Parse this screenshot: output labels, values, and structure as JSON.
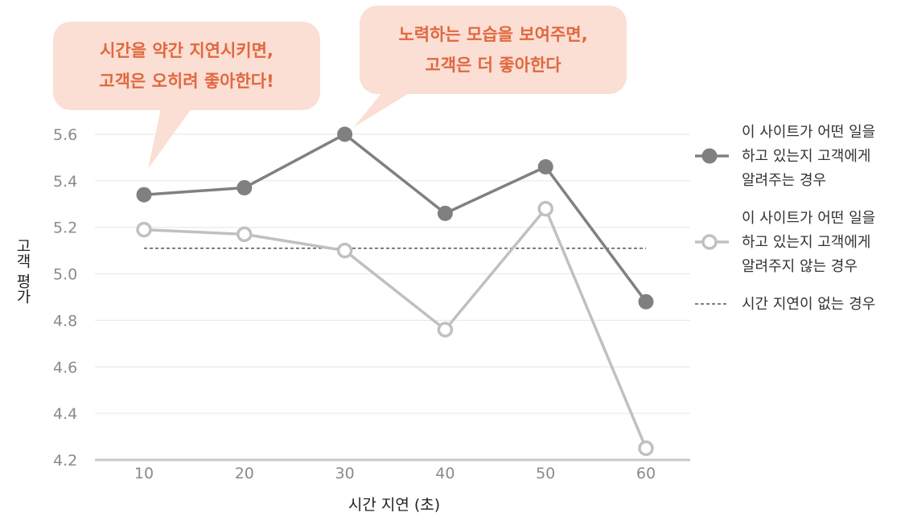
{
  "chart_data": {
    "type": "line",
    "x": [
      10,
      20,
      30,
      40,
      50,
      60
    ],
    "xlabel": "시간 지연 (초)",
    "ylabel": "고객 평가",
    "ylim": [
      4.2,
      5.6
    ],
    "yticks": [
      "5.6",
      "5.4",
      "5.2",
      "5.0",
      "4.8",
      "4.6",
      "4.4",
      "4.2"
    ],
    "xticks": [
      "10",
      "20",
      "30",
      "40",
      "50",
      "60"
    ],
    "grid": true,
    "legend_position": "right",
    "series": [
      {
        "name": [
          "이 사이트가 어떤 일을",
          "하고 있는지 고객에게",
          "알려주는 경우"
        ],
        "values": [
          5.34,
          5.37,
          5.6,
          5.26,
          5.46,
          4.88
        ],
        "color": "#808080",
        "marker": "filled"
      },
      {
        "name": [
          "이 사이트가 어떤 일을",
          "하고 있는지 고객에게",
          "알려주지 않는 경우"
        ],
        "values": [
          5.19,
          5.17,
          5.1,
          4.76,
          5.28,
          4.25
        ],
        "color": "#c0c0c0",
        "marker": "hollow"
      }
    ],
    "reference_line": {
      "name": "시간 지연이 없는 경우",
      "value": 5.11,
      "style": "dashed"
    },
    "annotations": [
      {
        "lines": [
          "시간을 약간 지연시키면,",
          "고객은 오히려 좋아한다!"
        ]
      },
      {
        "lines": [
          "노력하는 모습을 보여주면,",
          "고객은 더 좋아한다"
        ]
      }
    ],
    "annotation_bg": "#fbded4",
    "annotation_color": "#e0683f"
  }
}
